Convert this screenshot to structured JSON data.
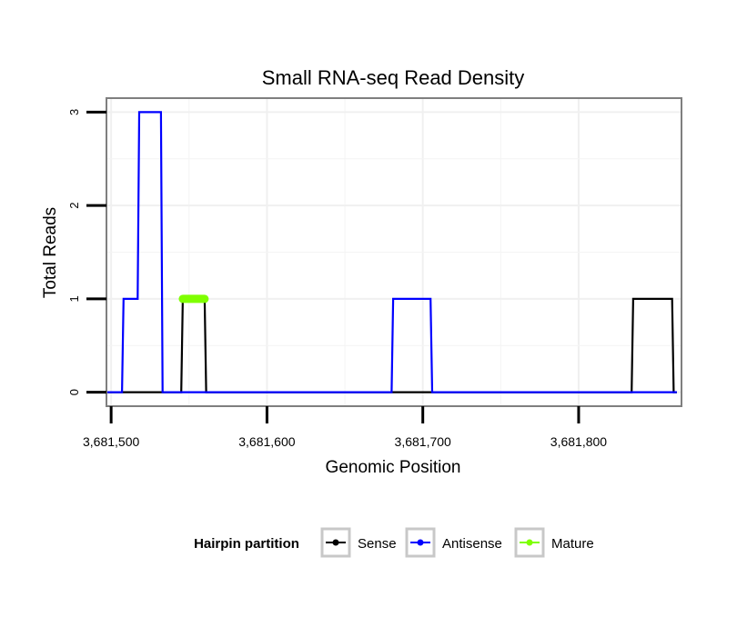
{
  "chart_data": {
    "type": "line",
    "title": "Small RNA-seq Read Density",
    "xlabel": "Genomic Position",
    "ylabel": "Total Reads",
    "xlim": [
      3681497,
      3681866
    ],
    "ylim": [
      -0.15,
      3.15
    ],
    "x_ticks": [
      3681500,
      3681600,
      3681700,
      3681800
    ],
    "x_tick_labels": [
      "3,681,500",
      "3,681,600",
      "3,681,700",
      "3,681,800"
    ],
    "y_ticks": [
      0,
      1,
      2,
      3
    ],
    "y_tick_labels": [
      "0",
      "1",
      "2",
      "3"
    ],
    "grid": true,
    "legend": {
      "title": "Hairpin partition",
      "position": "bottom",
      "items": [
        "Sense",
        "Antisense",
        "Mature"
      ]
    },
    "series": [
      {
        "name": "Sense",
        "color": "#000000",
        "x": [
          3681497,
          3681545,
          3681546,
          3681560,
          3681561,
          3681567,
          3681700,
          3681834,
          3681835,
          3681860,
          3681861,
          3681863
        ],
        "y": [
          0,
          0,
          1,
          1,
          0,
          0,
          0,
          0,
          1,
          1,
          0,
          0
        ]
      },
      {
        "name": "Antisense",
        "color": "#0000ff",
        "x": [
          3681497,
          3681507,
          3681508,
          3681517,
          3681518,
          3681532,
          3681533,
          3681680,
          3681681,
          3681705,
          3681706,
          3681863
        ],
        "y": [
          0,
          0,
          1,
          1,
          3,
          3,
          0,
          0,
          1,
          1,
          0,
          0
        ]
      },
      {
        "name": "Mature",
        "color": "#7fff00",
        "x": [
          3681546,
          3681560
        ],
        "y": [
          1,
          1
        ]
      }
    ]
  }
}
